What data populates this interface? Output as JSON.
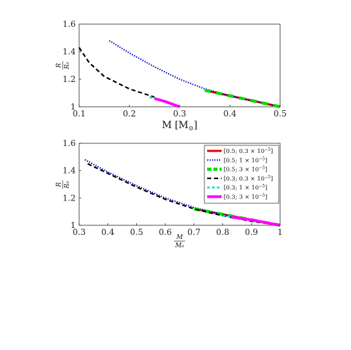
{
  "chart_data": [
    {
      "type": "line",
      "xlabel": "M [M_⊙]",
      "xlabel_main": "M [M",
      "xlabel_sub": "⊙",
      "xlabel_close": "]",
      "ylabel_num": "R",
      "ylabel_den": "R₀",
      "xlim": [
        0.1,
        0.5
      ],
      "ylim": [
        1.0,
        1.6
      ],
      "xticks": [
        "0.1",
        "0.2",
        "0.3",
        "0.4",
        "0.5"
      ],
      "yticks": [
        "1",
        "1.2",
        "1.4",
        "1.6"
      ],
      "grid": false,
      "series": [
        {
          "key": "red",
          "color": "#e00000",
          "dash": "",
          "width": 3,
          "x": [
            0.35,
            0.4,
            0.45,
            0.5
          ],
          "y": [
            1.12,
            1.08,
            1.04,
            1.0
          ]
        },
        {
          "key": "blue",
          "color": "#0000cc",
          "dash": "1.5,2",
          "width": 2.2,
          "x": [
            0.16,
            0.2,
            0.25,
            0.3,
            0.35,
            0.4,
            0.45,
            0.5
          ],
          "y": [
            1.48,
            1.39,
            1.29,
            1.2,
            1.13,
            1.08,
            1.04,
            1.0
          ]
        },
        {
          "key": "green",
          "color": "#00dd00",
          "dash": "9,8",
          "width": 4.5,
          "x": [
            0.35,
            0.4,
            0.45,
            0.5
          ],
          "y": [
            1.12,
            1.08,
            1.04,
            1.0
          ]
        },
        {
          "key": "black",
          "color": "#000000",
          "dash": "6,4",
          "width": 2.2,
          "x": [
            0.1,
            0.12,
            0.15,
            0.2,
            0.25
          ],
          "y": [
            1.43,
            1.32,
            1.22,
            1.13,
            1.07
          ]
        },
        {
          "key": "cyan",
          "color": "#00e0e8",
          "dash": "4,3",
          "width": 2.6,
          "x": [
            0.24,
            0.26,
            0.28
          ],
          "y": [
            1.07,
            1.05,
            1.03
          ]
        },
        {
          "key": "magenta",
          "color": "#ff00ff",
          "dash": "",
          "width": 4,
          "x": [
            0.25,
            0.27,
            0.3
          ],
          "y": [
            1.06,
            1.04,
            1.0
          ]
        }
      ]
    },
    {
      "type": "line",
      "xlabel_num": "M",
      "xlabel_den": "M₀",
      "ylabel_num": "R",
      "ylabel_den": "R₀",
      "xlim": [
        0.3,
        1.0
      ],
      "ylim": [
        1.0,
        1.6
      ],
      "xticks": [
        "0.3",
        "0.4",
        "0.5",
        "0.6",
        "0.7",
        "0.8",
        "0.9",
        "1"
      ],
      "yticks": [
        "1",
        "1.2",
        "1.4",
        "1.6"
      ],
      "grid": false,
      "legend_position": "top-right",
      "series": [
        {
          "key": "red",
          "name_main": "[0.5; 0.3 × 10",
          "name_exp": "−5",
          "name_close": "]",
          "color": "#e00000",
          "dash": "",
          "width": 3,
          "x": [
            0.7,
            0.8,
            0.9,
            1.0
          ],
          "y": [
            1.12,
            1.08,
            1.04,
            1.0
          ]
        },
        {
          "key": "blue",
          "name_main": "[0.5; 1 × 10",
          "name_exp": "−5",
          "name_close": "]",
          "color": "#0000cc",
          "dash": "1.5,2",
          "width": 2.2,
          "x": [
            0.32,
            0.4,
            0.5,
            0.6,
            0.7,
            0.8,
            0.9,
            1.0
          ],
          "y": [
            1.48,
            1.39,
            1.29,
            1.2,
            1.13,
            1.08,
            1.04,
            1.0
          ]
        },
        {
          "key": "green",
          "name_main": "[0.5; 3 × 10",
          "name_exp": "−5",
          "name_close": "]",
          "color": "#00dd00",
          "dash": "9,8",
          "width": 4.5,
          "x": [
            0.7,
            0.8,
            0.9,
            1.0
          ],
          "y": [
            1.12,
            1.08,
            1.04,
            1.0
          ]
        },
        {
          "key": "black",
          "name_main": "[0.3; 0.3 × 10",
          "name_exp": "−5",
          "name_close": "]",
          "color": "#000000",
          "dash": "6,4",
          "width": 2.2,
          "x": [
            0.33,
            0.4,
            0.5,
            0.6,
            0.7,
            0.8,
            0.9,
            1.0
          ],
          "y": [
            1.45,
            1.38,
            1.28,
            1.19,
            1.12,
            1.07,
            1.03,
            1.0
          ]
        },
        {
          "key": "cyan",
          "name_main": "[0.3; 1 × 10",
          "name_exp": "−5",
          "name_close": "]",
          "color": "#00e0e8",
          "dash": "4,3",
          "width": 2.6,
          "x": [
            0.8,
            0.87,
            0.93
          ],
          "y": [
            1.07,
            1.05,
            1.03
          ]
        },
        {
          "key": "magenta",
          "name_main": "[0.3; 3 × 10",
          "name_exp": "−5",
          "name_close": "]",
          "color": "#ff00ff",
          "dash": "",
          "width": 4,
          "x": [
            0.83,
            0.9,
            1.0
          ],
          "y": [
            1.06,
            1.04,
            1.0
          ]
        }
      ]
    }
  ]
}
